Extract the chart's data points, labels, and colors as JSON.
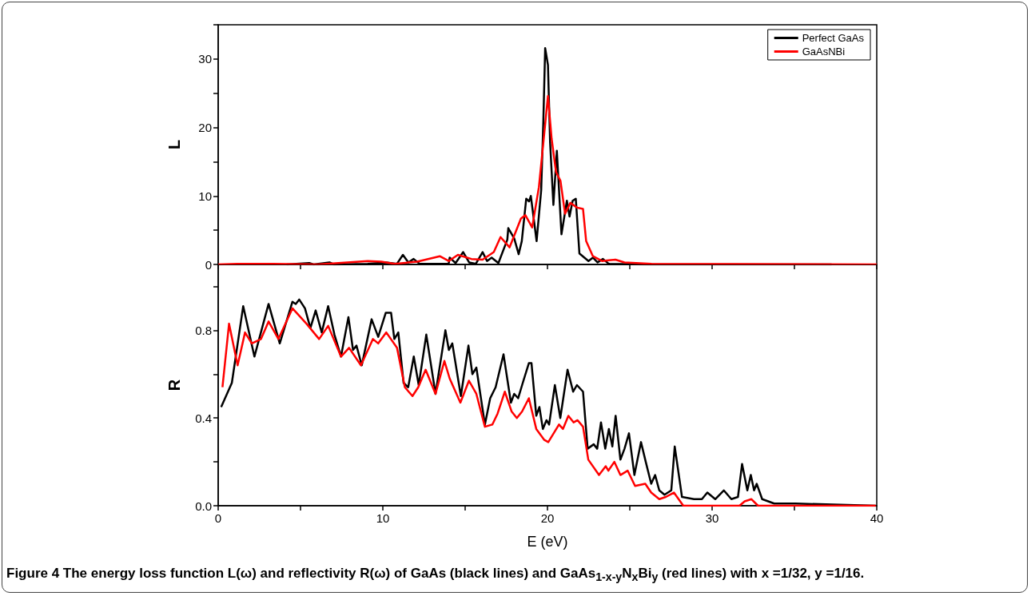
{
  "chart_data": [
    {
      "type": "line",
      "ylabel": "L",
      "legend": "top right",
      "tick_labels": "y",
      "xlim": [
        0,
        40
      ],
      "xticks": [
        0,
        {
          "value": 5,
          "label": null
        },
        10,
        {
          "value": 15,
          "label": null
        },
        20,
        {
          "value": 25,
          "label": null
        },
        30,
        {
          "value": 35,
          "label": null
        },
        40
      ],
      "ylim": [
        0,
        35
      ],
      "yticks": [
        0,
        {
          "value": 5,
          "label": null
        },
        10,
        {
          "value": 15,
          "label": null
        },
        20,
        {
          "value": 25,
          "label": null
        },
        30,
        {
          "value": 35,
          "label": null
        }
      ],
      "series": [
        {
          "name": "Perfect GaAs",
          "color": "#000000",
          "x": [
            4.16,
            5.53,
            5.8,
            6.76,
            7.03,
            9.08,
            10.18,
            10.86,
            11.22,
            11.55,
            11.87,
            12.23,
            14.0,
            14.06,
            14.42,
            14.88,
            15.24,
            15.65,
            16.06,
            16.33,
            16.61,
            17.02,
            17.56,
            17.62,
            17.98,
            18.25,
            18.44,
            18.71,
            18.88,
            18.99,
            19.34,
            19.62,
            19.75,
            19.86,
            20.03,
            20.16,
            20.36,
            20.57,
            20.85,
            21.18,
            21.34,
            21.53,
            21.72,
            21.94,
            22.49,
            22.76,
            23.04,
            23.37,
            23.72,
            26.32,
            37.26
          ],
          "values": [
            0,
            0.2,
            0,
            0.3,
            0,
            0.1,
            0.3,
            0.1,
            1.4,
            0.3,
            0.8,
            0.1,
            0.1,
            1.0,
            0.2,
            1.8,
            0.3,
            0.1,
            1.8,
            0.5,
            1.0,
            0.2,
            3.6,
            5.3,
            3.8,
            1.5,
            3.4,
            9.6,
            9.2,
            10.0,
            3.4,
            10.9,
            21.0,
            31.6,
            29.1,
            17.8,
            8.7,
            16.6,
            4.4,
            9.3,
            7.0,
            9.3,
            9.6,
            1.6,
            0.5,
            1.0,
            0.3,
            0.8,
            0.1,
            0,
            0
          ]
        },
        {
          "name": "GaAsNBi",
          "color": "#ff0000",
          "x": [
            0,
            1.15,
            3.34,
            6.07,
            9.08,
            9.9,
            10.72,
            12.09,
            13.46,
            14.0,
            14.56,
            15.38,
            16.06,
            16.74,
            17.15,
            17.7,
            18.39,
            18.66,
            19.07,
            19.48,
            19.75,
            20.03,
            20.25,
            20.52,
            20.79,
            21.07,
            21.39,
            21.8,
            22.16,
            22.35,
            22.76,
            23.31,
            24.13,
            24.68,
            26.32,
            40
          ],
          "values": [
            0,
            0.1,
            0.1,
            0,
            0.5,
            0.4,
            0.1,
            0.4,
            1.2,
            0.5,
            1.4,
            0.8,
            0.7,
            1.8,
            4.0,
            2.5,
            6.7,
            7.2,
            5.4,
            11.3,
            17.8,
            24.6,
            18.4,
            13.5,
            12.2,
            7.4,
            9.0,
            8.3,
            8.1,
            3.4,
            1.2,
            0.5,
            0.7,
            0.3,
            0.1,
            0
          ]
        }
      ]
    },
    {
      "type": "line",
      "xlabel": "E (eV)",
      "ylabel": "R",
      "xlim": [
        0,
        40
      ],
      "xticks": [
        0,
        {
          "value": 5,
          "label": null
        },
        10,
        {
          "value": 15,
          "label": null
        },
        20,
        {
          "value": 25,
          "label": null
        },
        30,
        {
          "value": 35,
          "label": null
        },
        40
      ],
      "ylim": [
        0,
        1.1
      ],
      "yticks": [
        {
          "value": 0,
          "label": "0.0"
        },
        {
          "value": 0.2,
          "label": null
        },
        {
          "value": 0.4,
          "label": "0.4"
        },
        {
          "value": 0.6,
          "label": null
        },
        {
          "value": 0.8,
          "label": "0.8"
        },
        {
          "value": 1.0,
          "label": null
        }
      ],
      "annotations": [
        "Figure 4 The energy loss function L(ω) and reflectivity R(ω) of GaAs (black lines) and GaAs$_{1-x-y}$N$_{x}$Bi$_{y}$ (red lines) with x =1/32, y =1/16."
      ],
      "series": [
        {
          "color": "#000000",
          "x": [
            0.18,
            0.83,
            1.52,
            2.2,
            3.06,
            3.74,
            4.51,
            4.71,
            4.92,
            5.27,
            5.6,
            5.92,
            6.29,
            6.68,
            7.06,
            7.46,
            7.91,
            8.19,
            8.4,
            8.72,
            9.32,
            9.72,
            10.18,
            10.5,
            10.7,
            10.94,
            11.26,
            11.54,
            11.88,
            12.18,
            12.64,
            13.2,
            13.8,
            14.01,
            14.22,
            14.74,
            15.2,
            15.44,
            15.68,
            16.2,
            16.52,
            16.85,
            17.33,
            17.78,
            17.98,
            18.22,
            18.54,
            18.87,
            19.03,
            19.32,
            19.51,
            19.72,
            19.94,
            20.1,
            20.45,
            20.78,
            21.22,
            21.56,
            21.79,
            22.16,
            22.44,
            22.81,
            23.02,
            23.25,
            23.51,
            23.73,
            23.94,
            24.14,
            24.43,
            24.68,
            24.95,
            25.28,
            25.68,
            25.97,
            26.3,
            26.54,
            26.79,
            27.11,
            27.52,
            27.73,
            28.17,
            28.9,
            29.38,
            29.71,
            30.19,
            30.71,
            31.17,
            31.57,
            31.82,
            32.14,
            32.35,
            32.55,
            32.71,
            33.04,
            33.77,
            35.06,
            39.94
          ],
          "values": [
            0.45,
            0.56,
            0.91,
            0.68,
            0.92,
            0.74,
            0.93,
            0.92,
            0.94,
            0.9,
            0.81,
            0.89,
            0.79,
            0.91,
            0.78,
            0.68,
            0.86,
            0.71,
            0.73,
            0.64,
            0.85,
            0.77,
            0.88,
            0.88,
            0.76,
            0.79,
            0.56,
            0.54,
            0.68,
            0.55,
            0.78,
            0.51,
            0.8,
            0.71,
            0.74,
            0.5,
            0.73,
            0.6,
            0.63,
            0.37,
            0.49,
            0.54,
            0.69,
            0.47,
            0.51,
            0.49,
            0.57,
            0.65,
            0.65,
            0.41,
            0.45,
            0.35,
            0.39,
            0.37,
            0.55,
            0.4,
            0.62,
            0.52,
            0.55,
            0.52,
            0.26,
            0.28,
            0.26,
            0.38,
            0.26,
            0.35,
            0.27,
            0.41,
            0.21,
            0.26,
            0.33,
            0.14,
            0.29,
            0.2,
            0.1,
            0.14,
            0.07,
            0.05,
            0.07,
            0.27,
            0.04,
            0.03,
            0.03,
            0.06,
            0.03,
            0.07,
            0.03,
            0.04,
            0.19,
            0.07,
            0.14,
            0.07,
            0.1,
            0.03,
            0.01,
            0.01,
            0.0
          ]
        },
        {
          "color": "#ff0000",
          "x": [
            0.26,
            0.66,
            1.18,
            1.63,
            2.04,
            2.6,
            3.06,
            3.66,
            4.51,
            5.36,
            6.13,
            6.68,
            7.46,
            7.95,
            8.67,
            9.4,
            9.72,
            10.21,
            10.86,
            11.34,
            11.8,
            12.15,
            12.6,
            13.2,
            13.74,
            14.06,
            14.71,
            15.23,
            15.68,
            16.2,
            16.65,
            16.97,
            17.41,
            17.82,
            18.14,
            18.46,
            18.87,
            19.32,
            19.81,
            20.05,
            20.7,
            20.94,
            21.27,
            21.59,
            21.83,
            22.16,
            22.48,
            23.13,
            23.54,
            23.7,
            24.06,
            24.43,
            24.87,
            25.32,
            25.94,
            26.3,
            26.79,
            27.19,
            27.68,
            28.25,
            29.87,
            31.66,
            31.98,
            32.39,
            32.79,
            39.94
          ],
          "values": [
            0.54,
            0.83,
            0.64,
            0.79,
            0.74,
            0.76,
            0.84,
            0.76,
            0.9,
            0.83,
            0.76,
            0.82,
            0.68,
            0.72,
            0.64,
            0.76,
            0.74,
            0.79,
            0.72,
            0.54,
            0.5,
            0.54,
            0.62,
            0.51,
            0.66,
            0.58,
            0.47,
            0.57,
            0.51,
            0.36,
            0.37,
            0.42,
            0.52,
            0.43,
            0.4,
            0.43,
            0.49,
            0.35,
            0.3,
            0.29,
            0.37,
            0.35,
            0.41,
            0.38,
            0.39,
            0.36,
            0.21,
            0.14,
            0.18,
            0.16,
            0.2,
            0.14,
            0.16,
            0.09,
            0.1,
            0.06,
            0.03,
            0.04,
            0.06,
            0.0,
            0.0,
            0.0,
            0.02,
            0.03,
            0.0,
            0.0
          ]
        }
      ]
    }
  ]
}
